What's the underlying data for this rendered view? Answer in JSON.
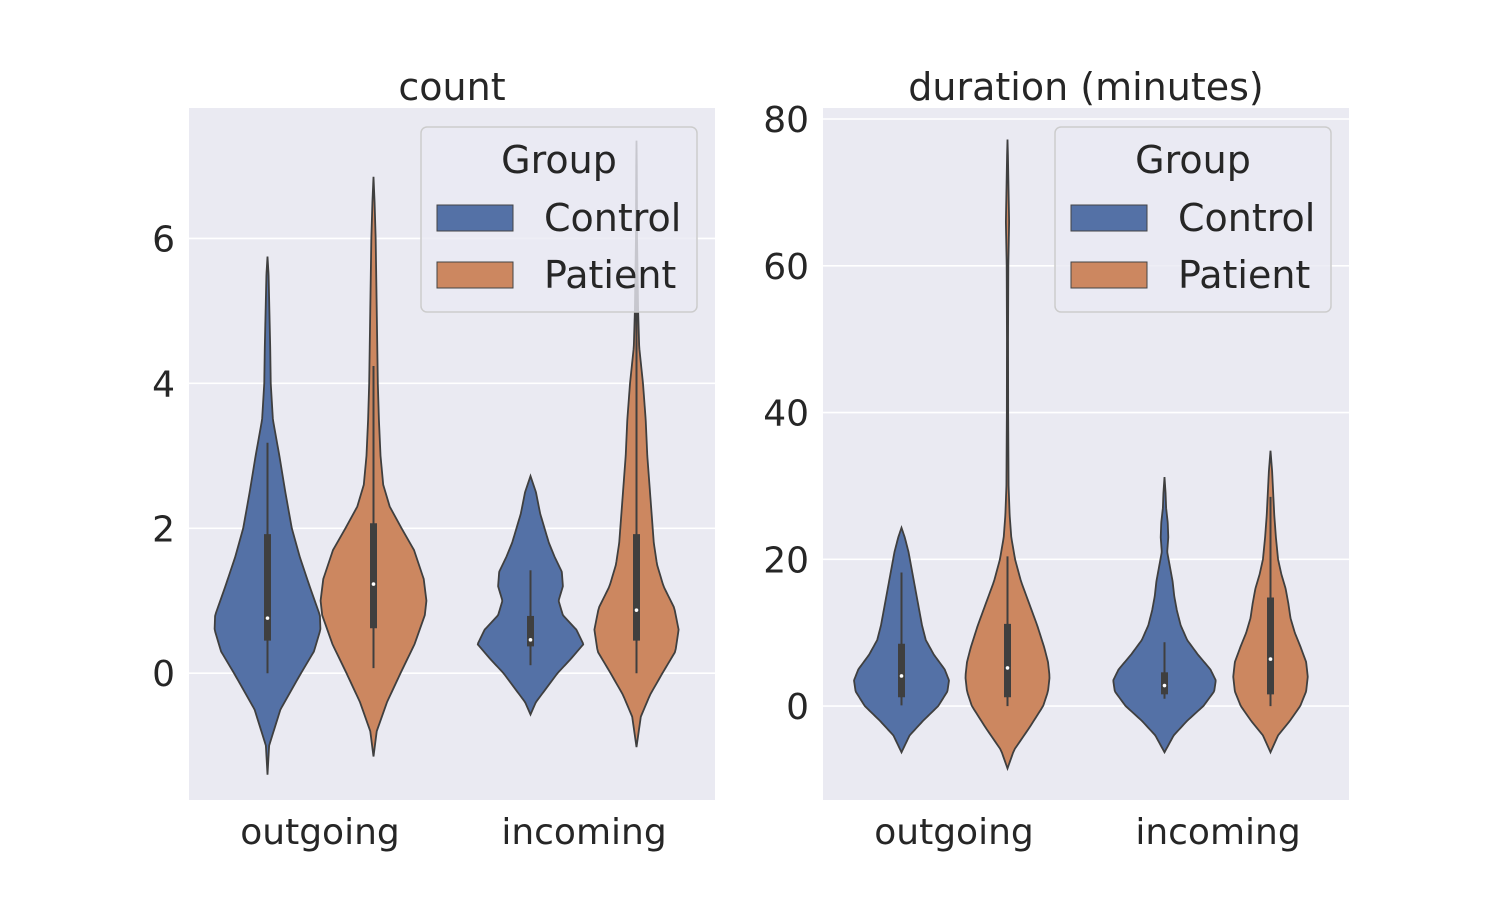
{
  "chart_data": [
    {
      "type": "violin",
      "title": "count",
      "xlabel": "",
      "ylabel": "",
      "categories": [
        "outgoing",
        "incoming"
      ],
      "ylim": [
        -1.75,
        7.8
      ],
      "yticks": [
        0,
        2,
        4,
        6
      ],
      "grid": true,
      "legend": {
        "title": "Group",
        "entries": [
          "Control",
          "Patient"
        ],
        "placement": "top-right"
      },
      "series": [
        {
          "name": "Control",
          "color": "#5471a6",
          "violins": [
            {
              "category": "outgoing",
              "extent": [
                -1.4,
                5.75
              ],
              "profile": [
                [
                  -1.4,
                  0.0
                ],
                [
                  -1.0,
                  0.03
                ],
                [
                  -0.5,
                  0.24
                ],
                [
                  0.0,
                  0.62
                ],
                [
                  0.3,
                  0.86
                ],
                [
                  0.6,
                  0.98
                ],
                [
                  0.8,
                  0.97
                ],
                [
                  1.2,
                  0.78
                ],
                [
                  1.6,
                  0.6
                ],
                [
                  2.0,
                  0.45
                ],
                [
                  2.5,
                  0.33
                ],
                [
                  3.0,
                  0.22
                ],
                [
                  3.5,
                  0.1
                ],
                [
                  4.0,
                  0.06
                ],
                [
                  4.5,
                  0.05
                ],
                [
                  5.0,
                  0.035
                ],
                [
                  5.5,
                  0.02
                ],
                [
                  5.75,
                  0.0
                ]
              ],
              "whisker": [
                0.0,
                3.18
              ],
              "iqr": [
                0.45,
                1.92
              ],
              "median": 0.76
            },
            {
              "category": "incoming",
              "extent": [
                -0.57,
                2.72
              ],
              "profile": [
                [
                  -0.57,
                  0.0
                ],
                [
                  -0.4,
                  0.1
                ],
                [
                  -0.2,
                  0.3
                ],
                [
                  0.0,
                  0.5
                ],
                [
                  0.2,
                  0.75
                ],
                [
                  0.4,
                  0.98
                ],
                [
                  0.6,
                  0.85
                ],
                [
                  0.8,
                  0.6
                ],
                [
                  1.0,
                  0.52
                ],
                [
                  1.2,
                  0.6
                ],
                [
                  1.4,
                  0.58
                ],
                [
                  1.6,
                  0.45
                ],
                [
                  1.8,
                  0.34
                ],
                [
                  2.0,
                  0.26
                ],
                [
                  2.2,
                  0.18
                ],
                [
                  2.5,
                  0.1
                ],
                [
                  2.72,
                  0.0
                ]
              ],
              "whisker": [
                0.11,
                1.42
              ],
              "iqr": [
                0.37,
                0.79
              ],
              "median": 0.46
            }
          ]
        },
        {
          "name": "Patient",
          "color": "#cc8760",
          "violins": [
            {
              "category": "outgoing",
              "extent": [
                -1.15,
                6.85
              ],
              "profile": [
                [
                  -1.15,
                  0.0
                ],
                [
                  -0.8,
                  0.06
                ],
                [
                  -0.4,
                  0.25
                ],
                [
                  0.0,
                  0.5
                ],
                [
                  0.4,
                  0.76
                ],
                [
                  0.8,
                  0.95
                ],
                [
                  1.0,
                  0.98
                ],
                [
                  1.3,
                  0.93
                ],
                [
                  1.7,
                  0.75
                ],
                [
                  2.0,
                  0.52
                ],
                [
                  2.3,
                  0.3
                ],
                [
                  2.6,
                  0.18
                ],
                [
                  3.0,
                  0.13
                ],
                [
                  3.5,
                  0.1
                ],
                [
                  4.0,
                  0.08
                ],
                [
                  4.5,
                  0.07
                ],
                [
                  5.0,
                  0.06
                ],
                [
                  5.5,
                  0.05
                ],
                [
                  6.0,
                  0.04
                ],
                [
                  6.5,
                  0.02
                ],
                [
                  6.85,
                  0.0
                ]
              ],
              "whisker": [
                0.07,
                4.24
              ],
              "iqr": [
                0.62,
                2.07
              ],
              "median": 1.23
            },
            {
              "category": "incoming",
              "extent": [
                -1.02,
                7.35
              ],
              "profile": [
                [
                  -1.02,
                  0.0
                ],
                [
                  -0.6,
                  0.08
                ],
                [
                  -0.3,
                  0.25
                ],
                [
                  0.0,
                  0.48
                ],
                [
                  0.3,
                  0.72
                ],
                [
                  0.6,
                  0.78
                ],
                [
                  0.9,
                  0.7
                ],
                [
                  1.2,
                  0.5
                ],
                [
                  1.5,
                  0.38
                ],
                [
                  1.8,
                  0.32
                ],
                [
                  2.2,
                  0.28
                ],
                [
                  2.6,
                  0.24
                ],
                [
                  3.0,
                  0.2
                ],
                [
                  3.5,
                  0.17
                ],
                [
                  4.0,
                  0.12
                ],
                [
                  4.5,
                  0.05
                ],
                [
                  5.0,
                  0.03
                ],
                [
                  5.5,
                  0.02
                ],
                [
                  6.0,
                  0.01
                ],
                [
                  6.5,
                  0.008
                ],
                [
                  7.0,
                  0.005
                ],
                [
                  7.35,
                  0.0
                ]
              ],
              "whisker": [
                0.0,
                7.2
              ],
              "iqr": [
                0.45,
                1.92
              ],
              "median": 0.87
            }
          ]
        }
      ]
    },
    {
      "type": "violin",
      "title": "duration (minutes)",
      "xlabel": "",
      "ylabel": "",
      "categories": [
        "outgoing",
        "incoming"
      ],
      "ylim": [
        -12.8,
        81.5
      ],
      "yticks": [
        0,
        20,
        40,
        60,
        80
      ],
      "grid": true,
      "legend": {
        "title": "Group",
        "entries": [
          "Control",
          "Patient"
        ],
        "placement": "top-right"
      },
      "series": [
        {
          "name": "Control",
          "color": "#5471a6",
          "violins": [
            {
              "category": "outgoing",
              "extent": [
                -6.3,
                24.3
              ],
              "profile": [
                [
                  -6.3,
                  0.0
                ],
                [
                  -4.0,
                  0.15
                ],
                [
                  -2.0,
                  0.4
                ],
                [
                  0.0,
                  0.68
                ],
                [
                  2.0,
                  0.85
                ],
                [
                  3.5,
                  0.88
                ],
                [
                  5.0,
                  0.8
                ],
                [
                  7.0,
                  0.6
                ],
                [
                  9.0,
                  0.45
                ],
                [
                  11.0,
                  0.38
                ],
                [
                  13.0,
                  0.33
                ],
                [
                  15.0,
                  0.28
                ],
                [
                  17.0,
                  0.23
                ],
                [
                  19.0,
                  0.18
                ],
                [
                  21.0,
                  0.13
                ],
                [
                  23.0,
                  0.06
                ],
                [
                  24.3,
                  0.0
                ]
              ],
              "whisker": [
                0.1,
                18.2
              ],
              "iqr": [
                1.2,
                8.5
              ],
              "median": 4.1
            },
            {
              "category": "incoming",
              "extent": [
                -6.3,
                31.2
              ],
              "profile": [
                [
                  -6.3,
                  0.0
                ],
                [
                  -4.0,
                  0.17
                ],
                [
                  -2.0,
                  0.42
                ],
                [
                  0.0,
                  0.72
                ],
                [
                  2.0,
                  0.92
                ],
                [
                  3.5,
                  0.95
                ],
                [
                  5.0,
                  0.85
                ],
                [
                  7.0,
                  0.62
                ],
                [
                  9.0,
                  0.42
                ],
                [
                  11.0,
                  0.3
                ],
                [
                  13.0,
                  0.23
                ],
                [
                  15.0,
                  0.18
                ],
                [
                  17.0,
                  0.15
                ],
                [
                  19.0,
                  0.1
                ],
                [
                  21.0,
                  0.05
                ],
                [
                  23.0,
                  0.07
                ],
                [
                  25.0,
                  0.06
                ],
                [
                  27.0,
                  0.03
                ],
                [
                  29.0,
                  0.02
                ],
                [
                  31.2,
                  0.0
                ]
              ],
              "whisker": [
                1.0,
                8.7
              ],
              "iqr": [
                1.6,
                4.6
              ],
              "median": 2.8
            }
          ]
        },
        {
          "name": "Patient",
          "color": "#cc8760",
          "violins": [
            {
              "category": "outgoing",
              "extent": [
                -8.5,
                77.2
              ],
              "profile": [
                [
                  -8.5,
                  0.0
                ],
                [
                  -6.0,
                  0.12
                ],
                [
                  -3.0,
                  0.4
                ],
                [
                  0.0,
                  0.66
                ],
                [
                  2.0,
                  0.75
                ],
                [
                  4.0,
                  0.78
                ],
                [
                  6.0,
                  0.75
                ],
                [
                  8.0,
                  0.68
                ],
                [
                  11.0,
                  0.55
                ],
                [
                  14.0,
                  0.4
                ],
                [
                  17.0,
                  0.25
                ],
                [
                  20.0,
                  0.14
                ],
                [
                  23.0,
                  0.07
                ],
                [
                  26.0,
                  0.04
                ],
                [
                  30.0,
                  0.02
                ],
                [
                  40.0,
                  0.012
                ],
                [
                  50.0,
                  0.01
                ],
                [
                  60.0,
                  0.015
                ],
                [
                  66.0,
                  0.03
                ],
                [
                  70.0,
                  0.02
                ],
                [
                  75.0,
                  0.008
                ],
                [
                  77.2,
                  0.0
                ]
              ],
              "whisker": [
                0.0,
                20.4
              ],
              "iqr": [
                1.2,
                11.2
              ],
              "median": 5.2
            },
            {
              "category": "incoming",
              "extent": [
                -6.3,
                34.8
              ],
              "profile": [
                [
                  -6.3,
                  0.0
                ],
                [
                  -4.0,
                  0.14
                ],
                [
                  -2.0,
                  0.36
                ],
                [
                  0.0,
                  0.55
                ],
                [
                  2.0,
                  0.66
                ],
                [
                  4.0,
                  0.69
                ],
                [
                  6.0,
                  0.66
                ],
                [
                  8.0,
                  0.56
                ],
                [
                  10.0,
                  0.45
                ],
                [
                  12.0,
                  0.37
                ],
                [
                  14.0,
                  0.33
                ],
                [
                  16.0,
                  0.28
                ],
                [
                  18.0,
                  0.2
                ],
                [
                  20.0,
                  0.14
                ],
                [
                  23.0,
                  0.1
                ],
                [
                  26.0,
                  0.07
                ],
                [
                  29.0,
                  0.05
                ],
                [
                  32.0,
                  0.03
                ],
                [
                  34.8,
                  0.0
                ]
              ],
              "whisker": [
                0.0,
                28.5
              ],
              "iqr": [
                1.6,
                14.8
              ],
              "median": 6.4
            }
          ]
        }
      ]
    }
  ]
}
